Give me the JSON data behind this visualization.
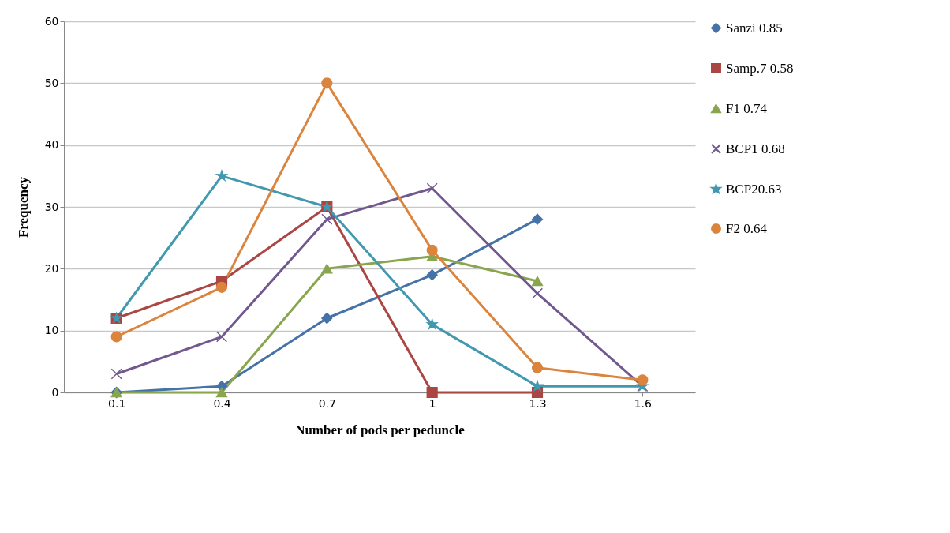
{
  "chart_data": {
    "type": "line",
    "xlabel": "Number of pods per peduncle",
    "ylabel": "Frequency",
    "categories": [
      "0.1",
      "0.4",
      "0.7",
      "1",
      "1.3",
      "1.6"
    ],
    "series": [
      {
        "name": "Sanzi 0.85",
        "color": "#4572a7",
        "marker": "diamond",
        "values": [
          0,
          1,
          12,
          19,
          28,
          null
        ]
      },
      {
        "name": "Samp.7 0.58",
        "color": "#aa4643",
        "marker": "square",
        "values": [
          12,
          18,
          30,
          0,
          0,
          null
        ]
      },
      {
        "name": "F1  0.74",
        "color": "#89a54e",
        "marker": "triangle",
        "values": [
          0,
          0,
          20,
          22,
          18,
          null
        ]
      },
      {
        "name": "BCP1 0.68",
        "color": "#71588f",
        "marker": "cross",
        "values": [
          3,
          9,
          28,
          33,
          16,
          1
        ]
      },
      {
        "name": "BCP20.63",
        "color": "#4198af",
        "marker": "star",
        "values": [
          12,
          35,
          30,
          11,
          1,
          1
        ]
      },
      {
        "name": "F2 0.64",
        "color": "#db843d",
        "marker": "circle",
        "values": [
          9,
          17,
          50,
          23,
          4,
          2
        ]
      }
    ],
    "ylim": [
      0,
      60
    ],
    "yticks": [
      0,
      10,
      20,
      30,
      40,
      50,
      60
    ],
    "grid": "y",
    "legend": "right",
    "line_style": "solid"
  }
}
